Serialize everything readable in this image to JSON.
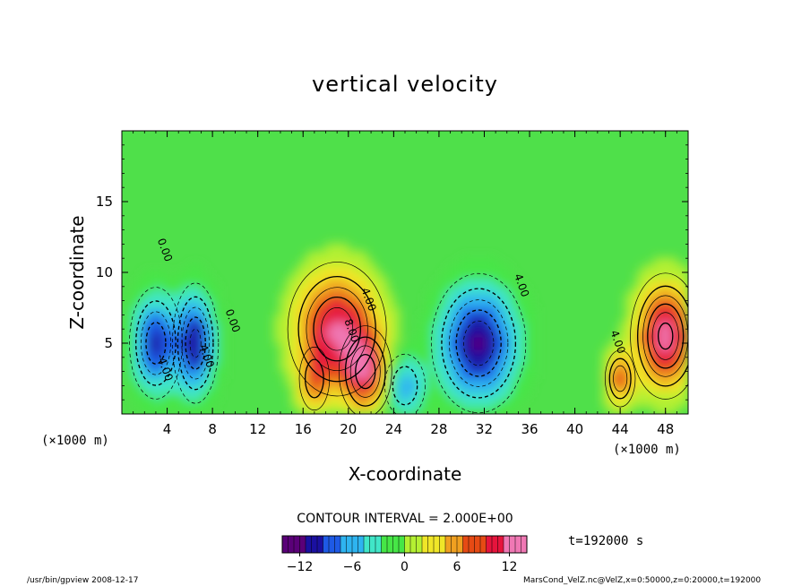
{
  "chart_data": {
    "type": "heatmap",
    "title": "vertical velocity",
    "xlabel": "X-coordinate",
    "ylabel": "Z-coordinate",
    "x_unit_label": "(×1000 m)",
    "x_unit_label_right": "(×1000 m)",
    "xlim": [
      0,
      50
    ],
    "ylim": [
      0,
      20
    ],
    "x_ticks": [
      4,
      8,
      12,
      16,
      20,
      24,
      28,
      32,
      36,
      40,
      44,
      48
    ],
    "y_ticks": [
      5,
      10,
      15
    ],
    "grid": false,
    "contour_interval_text": "CONTOUR INTERVAL = 2.000E+00",
    "time_text": "t=192000 s",
    "colorbar": {
      "min": -14,
      "max": 14,
      "ticks": [
        -12,
        -6,
        0,
        6,
        12
      ],
      "colors": [
        "#5a0078",
        "#1a10a0",
        "#1e5ae6",
        "#2eb4f0",
        "#40e6c8",
        "#46e646",
        "#b4f032",
        "#f0e628",
        "#f0a020",
        "#e64a14",
        "#e6143c",
        "#f078b4"
      ]
    },
    "contour_labels": [
      {
        "text": "-4.00",
        "x": 3.5,
        "z": 3.2
      },
      {
        "text": "4.00",
        "x": 7.2,
        "z": 4.0
      },
      {
        "text": "0.00",
        "x": 9.5,
        "z": 6.5
      },
      {
        "text": "0.00",
        "x": 3.5,
        "z": 11.5
      },
      {
        "text": "4.00",
        "x": 21.5,
        "z": 8.0
      },
      {
        "text": "8.00",
        "x": 20.0,
        "z": 5.8
      },
      {
        "text": "4.00",
        "x": 35.0,
        "z": 9.0
      },
      {
        "text": "4.00",
        "x": 43.5,
        "z": 5.0
      }
    ],
    "features": [
      {
        "kind": "updraft",
        "x": 19.0,
        "z": 6.0,
        "peak": 12,
        "sx": 2.3,
        "sz": 2.5
      },
      {
        "kind": "updraft",
        "x": 21.5,
        "z": 3.0,
        "peak": 10,
        "sx": 1.3,
        "sz": 1.8
      },
      {
        "kind": "updraft",
        "x": 48.0,
        "z": 5.5,
        "peak": 13,
        "sx": 1.6,
        "sz": 2.3
      },
      {
        "kind": "updraft",
        "x": 44.0,
        "z": 2.5,
        "peak": 8,
        "sx": 0.8,
        "sz": 1.2
      },
      {
        "kind": "updraft",
        "x": 17.0,
        "z": 2.5,
        "peak": 6,
        "sx": 0.9,
        "sz": 1.5
      },
      {
        "kind": "downdraft",
        "x": 3.0,
        "z": 5.0,
        "peak": -10,
        "sx": 1.3,
        "sz": 2.2
      },
      {
        "kind": "downdraft",
        "x": 6.5,
        "z": 5.0,
        "peak": -11,
        "sx": 1.1,
        "sz": 2.3
      },
      {
        "kind": "downdraft",
        "x": 31.5,
        "z": 5.0,
        "peak": -12,
        "sx": 2.2,
        "sz": 2.6
      },
      {
        "kind": "downdraft",
        "x": 25.0,
        "z": 2.0,
        "peak": -6,
        "sx": 1.2,
        "sz": 1.5
      }
    ]
  },
  "footer": {
    "left": "/usr/bin/gpview   2008-12-17",
    "right": "MarsCond_VelZ.nc@VelZ,x=0:50000,z=0:20000,t=192000"
  }
}
